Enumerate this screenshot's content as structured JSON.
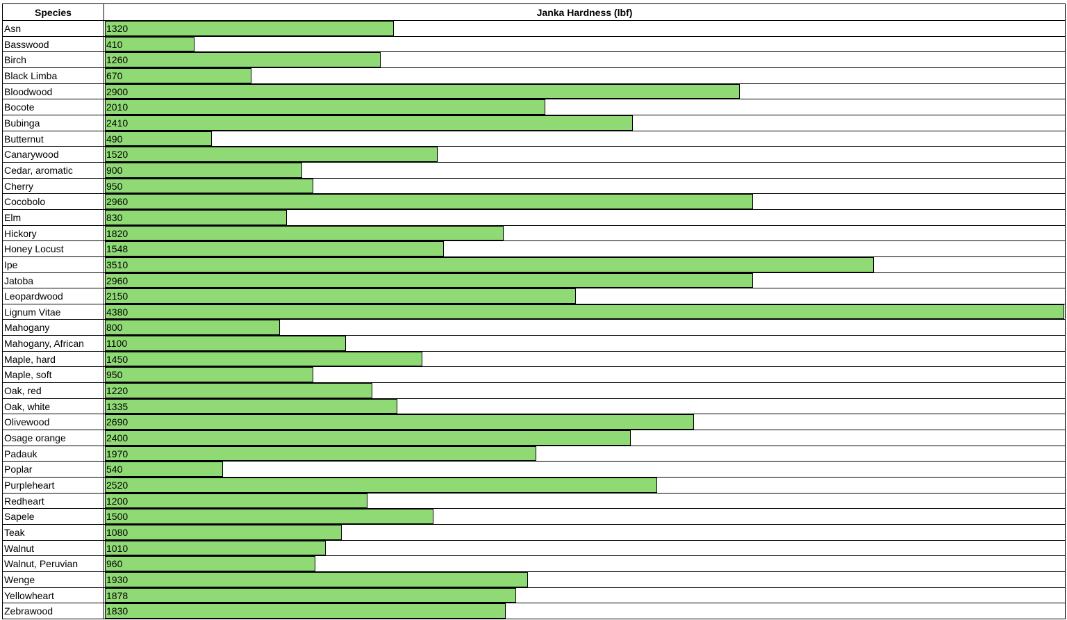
{
  "table": {
    "header": [
      "Species",
      "Janka Hardness (lbf)"
    ],
    "rows": [
      [
        "Asn",
        1320
      ],
      [
        "Basswood",
        410
      ],
      [
        "Birch",
        1260
      ],
      [
        "Black Limba",
        670
      ],
      [
        "Bloodwood",
        2900
      ],
      [
        "Bocote",
        2010
      ],
      [
        "Bubinga",
        2410
      ],
      [
        "Butternut",
        490
      ],
      [
        "Canarywood",
        1520
      ],
      [
        "Cedar, aromatic",
        900
      ],
      [
        "Cherry",
        950
      ],
      [
        "Cocobolo",
        2960
      ],
      [
        "Elm",
        830
      ],
      [
        "Hickory",
        1820
      ],
      [
        "Honey Locust",
        1548
      ],
      [
        "Ipe",
        3510
      ],
      [
        "Jatoba",
        2960
      ],
      [
        "Leopardwood",
        2150
      ],
      [
        "Lignum Vitae",
        4380
      ],
      [
        "Mahogany",
        800
      ],
      [
        "Mahogany, African",
        1100
      ],
      [
        "Maple, hard",
        1450
      ],
      [
        "Maple, soft",
        950
      ],
      [
        "Oak, red",
        1220
      ],
      [
        "Oak, white",
        1335
      ],
      [
        "Olivewood",
        2690
      ],
      [
        "Osage orange",
        2400
      ],
      [
        "Padauk",
        1970
      ],
      [
        "Poplar",
        540
      ],
      [
        "Purpleheart",
        2520
      ],
      [
        "Redheart",
        1200
      ],
      [
        "Sapele",
        1500
      ],
      [
        "Teak",
        1080
      ],
      [
        "Walnut",
        1010
      ],
      [
        "Walnut, Peruvian",
        960
      ],
      [
        "Wenge",
        1930
      ],
      [
        "Yellowheart",
        1878
      ],
      [
        "Zebrawood",
        1830
      ]
    ]
  }
}
